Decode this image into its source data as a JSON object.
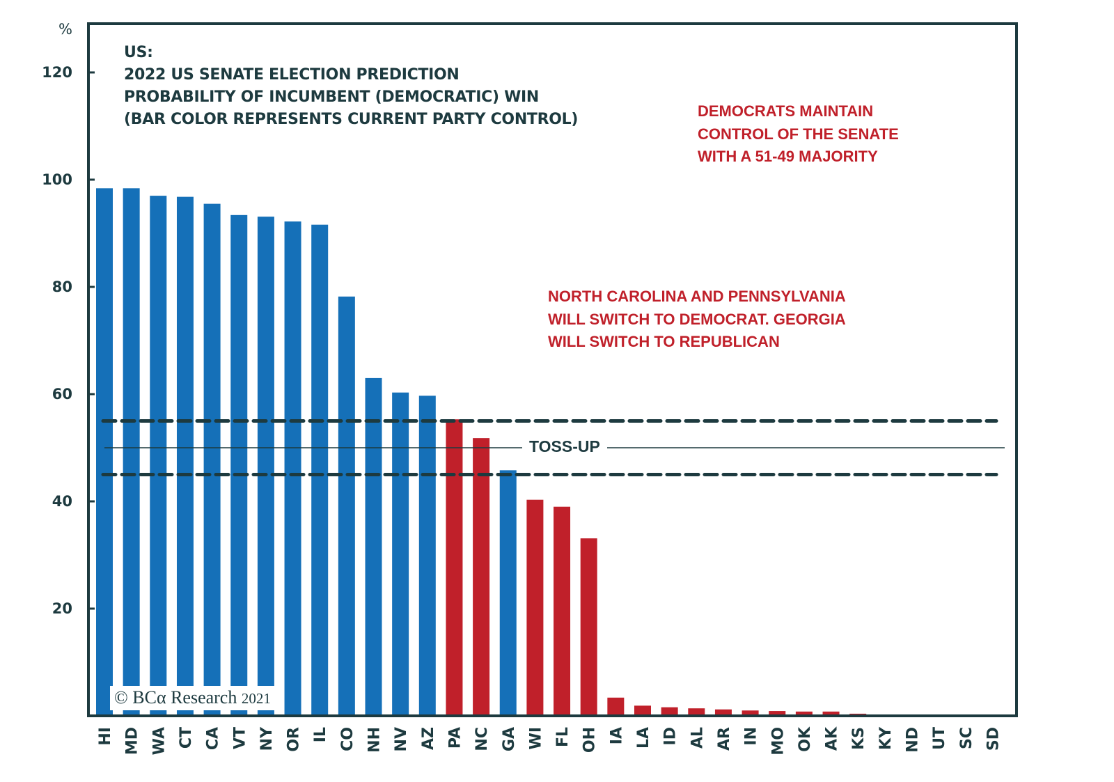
{
  "chart_data": {
    "type": "bar",
    "title_prefix": "US:",
    "title_lines": [
      "2022 US SENATE ELECTION PREDICTION",
      "PROBABILITY OF INCUMBENT (DEMOCRATIC) WIN",
      "(BAR COLOR REPRESENTS CURRENT PARTY CONTROL)"
    ],
    "ylabel": "%",
    "xlabel": "",
    "ylim": [
      0,
      130
    ],
    "yticks": [
      20,
      40,
      60,
      80,
      100,
      120
    ],
    "grid": false,
    "categories": [
      "HI",
      "MD",
      "WA",
      "CT",
      "CA",
      "VT",
      "NY",
      "OR",
      "IL",
      "CO",
      "NH",
      "NV",
      "AZ",
      "PA",
      "NC",
      "GA",
      "WI",
      "FL",
      "OH",
      "IA",
      "LA",
      "ID",
      "AL",
      "AR",
      "IN",
      "MO",
      "OK",
      "AK",
      "KS",
      "KY",
      "ND",
      "UT",
      "SC",
      "SD"
    ],
    "values": [
      98.4,
      98.4,
      97.0,
      96.8,
      95.5,
      93.4,
      93.1,
      92.2,
      91.6,
      78.2,
      63.0,
      60.3,
      59.7,
      55.3,
      51.8,
      45.8,
      40.3,
      39.0,
      33.1,
      3.4,
      1.9,
      1.6,
      1.4,
      1.2,
      1.0,
      0.9,
      0.8,
      0.8,
      0.4,
      0.1,
      0,
      0,
      0,
      0
    ],
    "current_party": [
      "D",
      "D",
      "D",
      "D",
      "D",
      "D",
      "D",
      "D",
      "D",
      "D",
      "D",
      "D",
      "D",
      "R",
      "R",
      "D",
      "R",
      "R",
      "R",
      "R",
      "R",
      "R",
      "R",
      "R",
      "R",
      "R",
      "R",
      "R",
      "R",
      "R",
      "R",
      "R",
      "R",
      "R"
    ],
    "party_colors": {
      "D": "#1570b8",
      "R": "#c0202a"
    },
    "reference_lines": [
      {
        "name": "toss-up-upper",
        "value": 55,
        "style": "dashed"
      },
      {
        "name": "toss-up-center",
        "value": 50,
        "style": "solid",
        "label": "TOSS-UP"
      },
      {
        "name": "toss-up-lower",
        "value": 45,
        "style": "dashed"
      }
    ],
    "annotations": [
      {
        "lines": [
          "DEMOCRATS MAINTAIN",
          "CONTROL OF THE SENATE",
          "WITH A 51-49 MAJORITY"
        ],
        "color": "#c0202a"
      },
      {
        "lines": [
          "NORTH CAROLINA AND PENNSYLVANIA",
          "WILL SWITCH TO DEMOCRAT. GEORGIA",
          "WILL SWITCH TO REPUBLICAN"
        ],
        "color": "#c0202a"
      }
    ]
  },
  "copyright": {
    "symbol": "©",
    "brand": "BCα Research",
    "year": "2021"
  },
  "colors": {
    "axis": "#1d3a3f",
    "annotation": "#c0202a"
  }
}
